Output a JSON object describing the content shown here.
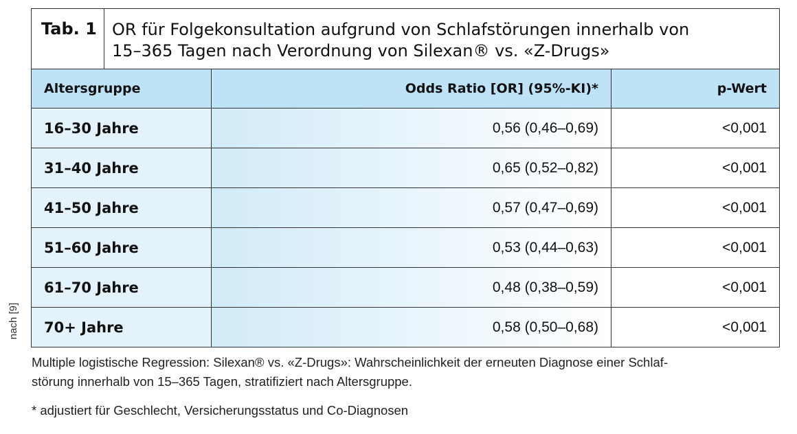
{
  "side_note": "nach [9]",
  "table": {
    "tab_label": "Tab. 1",
    "title_line1": "OR für Folgekonsultation aufgrund von Schlafstörungen innerhalb von",
    "title_line2": "15–365 Tagen nach Verordnung von Silexan® vs. «Z-Drugs»",
    "headers": [
      "Altersgruppe",
      "Odds Ratio [OR] (95%-KI)*",
      "p-Wert"
    ],
    "rows": [
      {
        "group": "16–30 Jahre",
        "or": "0,56 (0,46–0,69)",
        "p": "<0,001"
      },
      {
        "group": "31–40 Jahre",
        "or": "0,65 (0,52–0,82)",
        "p": "<0,001"
      },
      {
        "group": "41–50 Jahre",
        "or": "0,57 (0,47–0,69)",
        "p": "<0,001"
      },
      {
        "group": "51–60 Jahre",
        "or": "0,53 (0,44–0,63)",
        "p": "<0,001"
      },
      {
        "group": "61–70 Jahre",
        "or": "0,48 (0,38–0,59)",
        "p": "<0,001"
      },
      {
        "group": "70+ Jahre",
        "or": "0,58 (0,50–0,68)",
        "p": "<0,001"
      }
    ]
  },
  "notes": {
    "caption_line1": "Multiple logistische Regression: Silexan® vs. «Z-Drugs»: Wahrscheinlichkeit der erneuten Diagnose einer Schlaf-",
    "caption_line2": "störung innerhalb von 15–365 Tagen, stratifiziert nach Altersgruppe.",
    "footnote": "* adjustiert für Geschlecht, Versicherungsstatus und Co-Diagnosen"
  }
}
